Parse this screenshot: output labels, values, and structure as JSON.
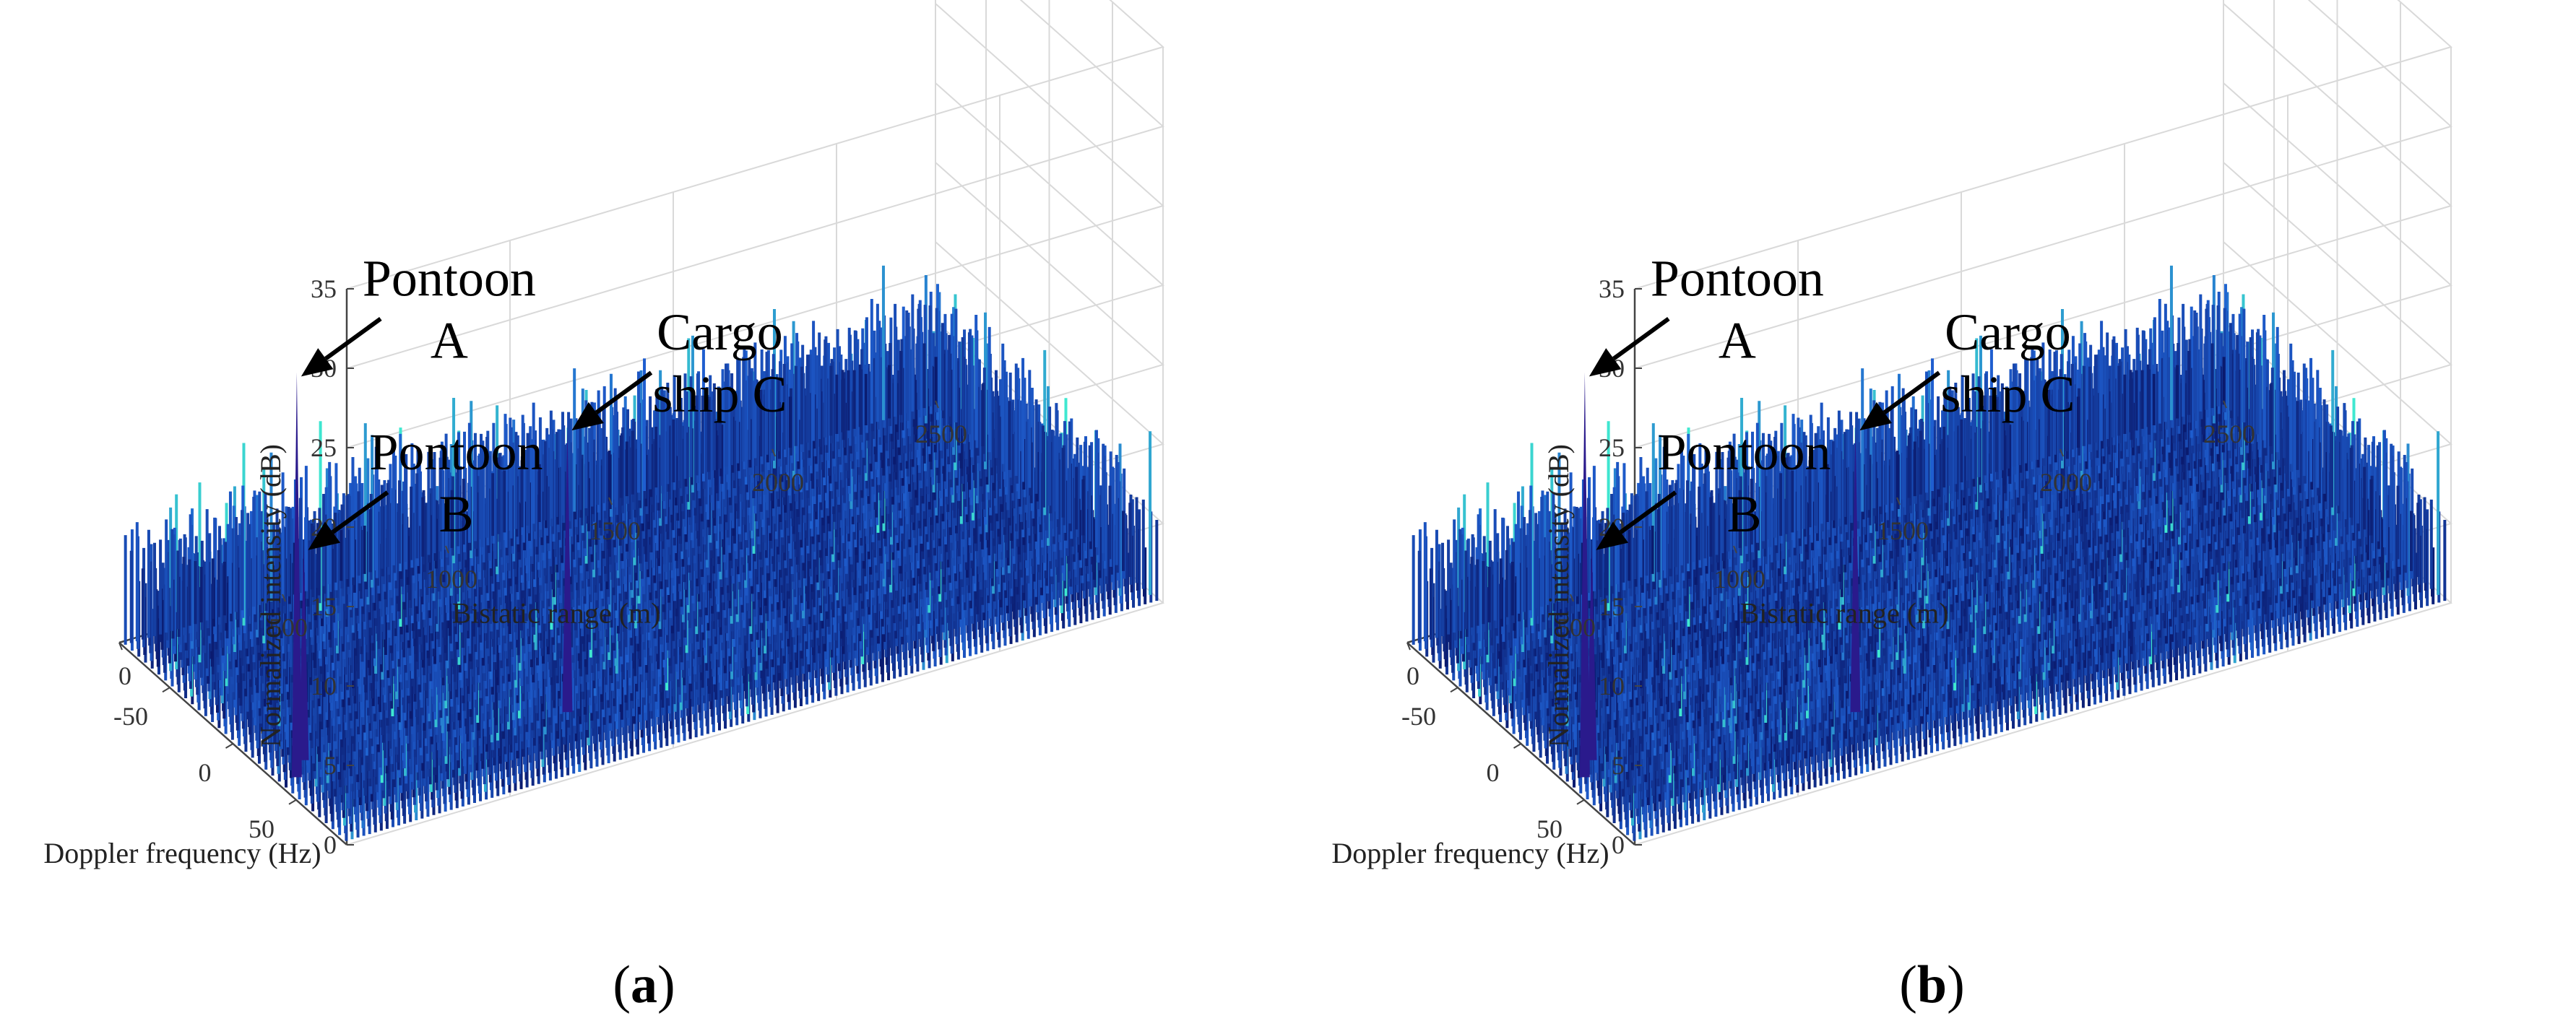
{
  "chart_data": [
    {
      "type": "surface3d",
      "panel": "a",
      "caption_open": "(",
      "caption_letter": "a",
      "caption_close": ")",
      "zlabel": "Normalized intensity (dB)",
      "xlabel": "Doppler frequency (Hz)",
      "ylabel": "Bistatic range (m)",
      "z_ticks": [
        "0",
        "5",
        "10",
        "15",
        "20",
        "25",
        "30",
        "35"
      ],
      "doppler_ticks": [
        "50",
        "0",
        "-50"
      ],
      "range_ticks": [
        "0",
        "500",
        "1000",
        "1500",
        "2000",
        "2500"
      ],
      "zlim": [
        0,
        35
      ],
      "doppler_lim": [
        -90,
        90
      ],
      "range_lim": [
        0,
        2500
      ],
      "noise_floor_db": [
        3,
        12
      ],
      "targets": [
        {
          "name": "Pontoon A",
          "line1": "Pontoon",
          "line2": "A",
          "doppler_hz": 35,
          "range_m": 60,
          "intensity_db": 25.5
        },
        {
          "name": "Pontoon B",
          "line1": "Pontoon",
          "line2": "B",
          "doppler_hz": 25,
          "range_m": 120,
          "intensity_db": 13.5
        },
        {
          "name": "Cargo ship C",
          "line1": "Cargo",
          "line2": "ship C",
          "doppler_hz": 45,
          "range_m": 850,
          "intensity_db": 18
        }
      ]
    },
    {
      "type": "surface3d",
      "panel": "b",
      "caption_open": "(",
      "caption_letter": "b",
      "caption_close": ")",
      "zlabel": "Normalized intensity (dB)",
      "xlabel": "Doppler frequency (Hz)",
      "ylabel": "Bistatic range (m)",
      "z_ticks": [
        "0",
        "5",
        "10",
        "15",
        "20",
        "25",
        "30",
        "35"
      ],
      "doppler_ticks": [
        "50",
        "0",
        "-50"
      ],
      "range_ticks": [
        "0",
        "500",
        "1000",
        "1500",
        "2000",
        "2500"
      ],
      "zlim": [
        0,
        35
      ],
      "doppler_lim": [
        -90,
        90
      ],
      "range_lim": [
        0,
        2500
      ],
      "noise_floor_db": [
        3,
        12
      ],
      "targets": [
        {
          "name": "Pontoon A",
          "line1": "Pontoon",
          "line2": "A",
          "doppler_hz": 35,
          "range_m": 60,
          "intensity_db": 25.5
        },
        {
          "name": "Pontoon B",
          "line1": "Pontoon",
          "line2": "B",
          "doppler_hz": 25,
          "range_m": 120,
          "intensity_db": 13.5
        },
        {
          "name": "Cargo ship C",
          "line1": "Cargo",
          "line2": "ship C",
          "doppler_hz": 45,
          "range_m": 850,
          "intensity_db": 18
        }
      ]
    }
  ],
  "colors": {
    "surface_low": "#0a1a6e",
    "surface_mid": "#1f5fd0",
    "surface_high": "#3fe8d0",
    "peak": "#2a1a8c",
    "grid": "#d9d9d9",
    "axis": "#444444",
    "arrow": "#000000"
  }
}
